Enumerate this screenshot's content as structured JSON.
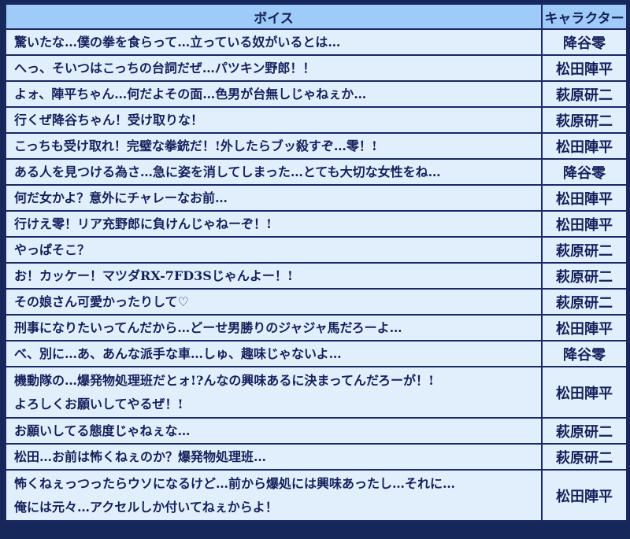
{
  "header": {
    "voice": "ボイス",
    "character": "キャラクター"
  },
  "rows": [
    {
      "voice": [
        "驚いたな…僕の拳を食らって…立っている奴がいるとは…"
      ],
      "character": "降谷零"
    },
    {
      "voice": [
        "へっ、そいつはこっちの台詞だぜ…パツキン野郎！！"
      ],
      "character": "松田陣平"
    },
    {
      "voice": [
        "よォ、陣平ちゃん…何だよその面…色男が台無しじゃねぇか…"
      ],
      "character": "萩原研二"
    },
    {
      "voice": [
        "行くぜ降谷ちゃん！受け取りな！"
      ],
      "character": "萩原研二"
    },
    {
      "voice": [
        "こっちも受け取れ！完璧な拳銃だ！!外したらブッ殺すぞ…零！!"
      ],
      "character": "松田陣平"
    },
    {
      "voice": [
        "ある人を見つける為さ…急に姿を消してしまった…とても大切な女性をね…"
      ],
      "character": "降谷零"
    },
    {
      "voice": [
        "何だ女かよ？意外にチャレーなお前…"
      ],
      "character": "松田陣平"
    },
    {
      "voice": [
        "行けえ零！リア充野郎に負けんじゃねーぞ！!"
      ],
      "character": "松田陣平"
    },
    {
      "voice": [
        "やっぱそこ？"
      ],
      "character": "萩原研二"
    },
    {
      "voice": [
        "お！カッケー！マツダRX-7FD3Sじゃんよー！!"
      ],
      "character": "萩原研二"
    },
    {
      "voice": [
        "その娘さん可愛かったりして♡"
      ],
      "character": "萩原研二"
    },
    {
      "voice": [
        "刑事になりたいってんだから…どーせ男勝りのジャジャ馬だろーよ…"
      ],
      "character": "松田陣平"
    },
    {
      "voice": [
        "べ、別に…あ、あんな派手な車…しゅ、趣味じゃないよ…"
      ],
      "character": "降谷零"
    },
    {
      "voice": [
        "機動隊の…爆発物処理班だとォ!?んなの興味あるに決まってんだろーが！!",
        "よろしくお願いしてやるぜ！!"
      ],
      "character": "松田陣平"
    },
    {
      "voice": [
        "お願いしてる態度じゃねぇな…"
      ],
      "character": "萩原研二"
    },
    {
      "voice": [
        "松田…お前は怖くねぇのか？爆発物処理班…"
      ],
      "character": "萩原研二"
    },
    {
      "voice": [
        "怖くねぇっつったらウソになるけど…前から爆処には興味あったし…それに…",
        "俺には元々…アクセルしか付いてねぇからよ！"
      ],
      "character": "松田陣平"
    }
  ]
}
